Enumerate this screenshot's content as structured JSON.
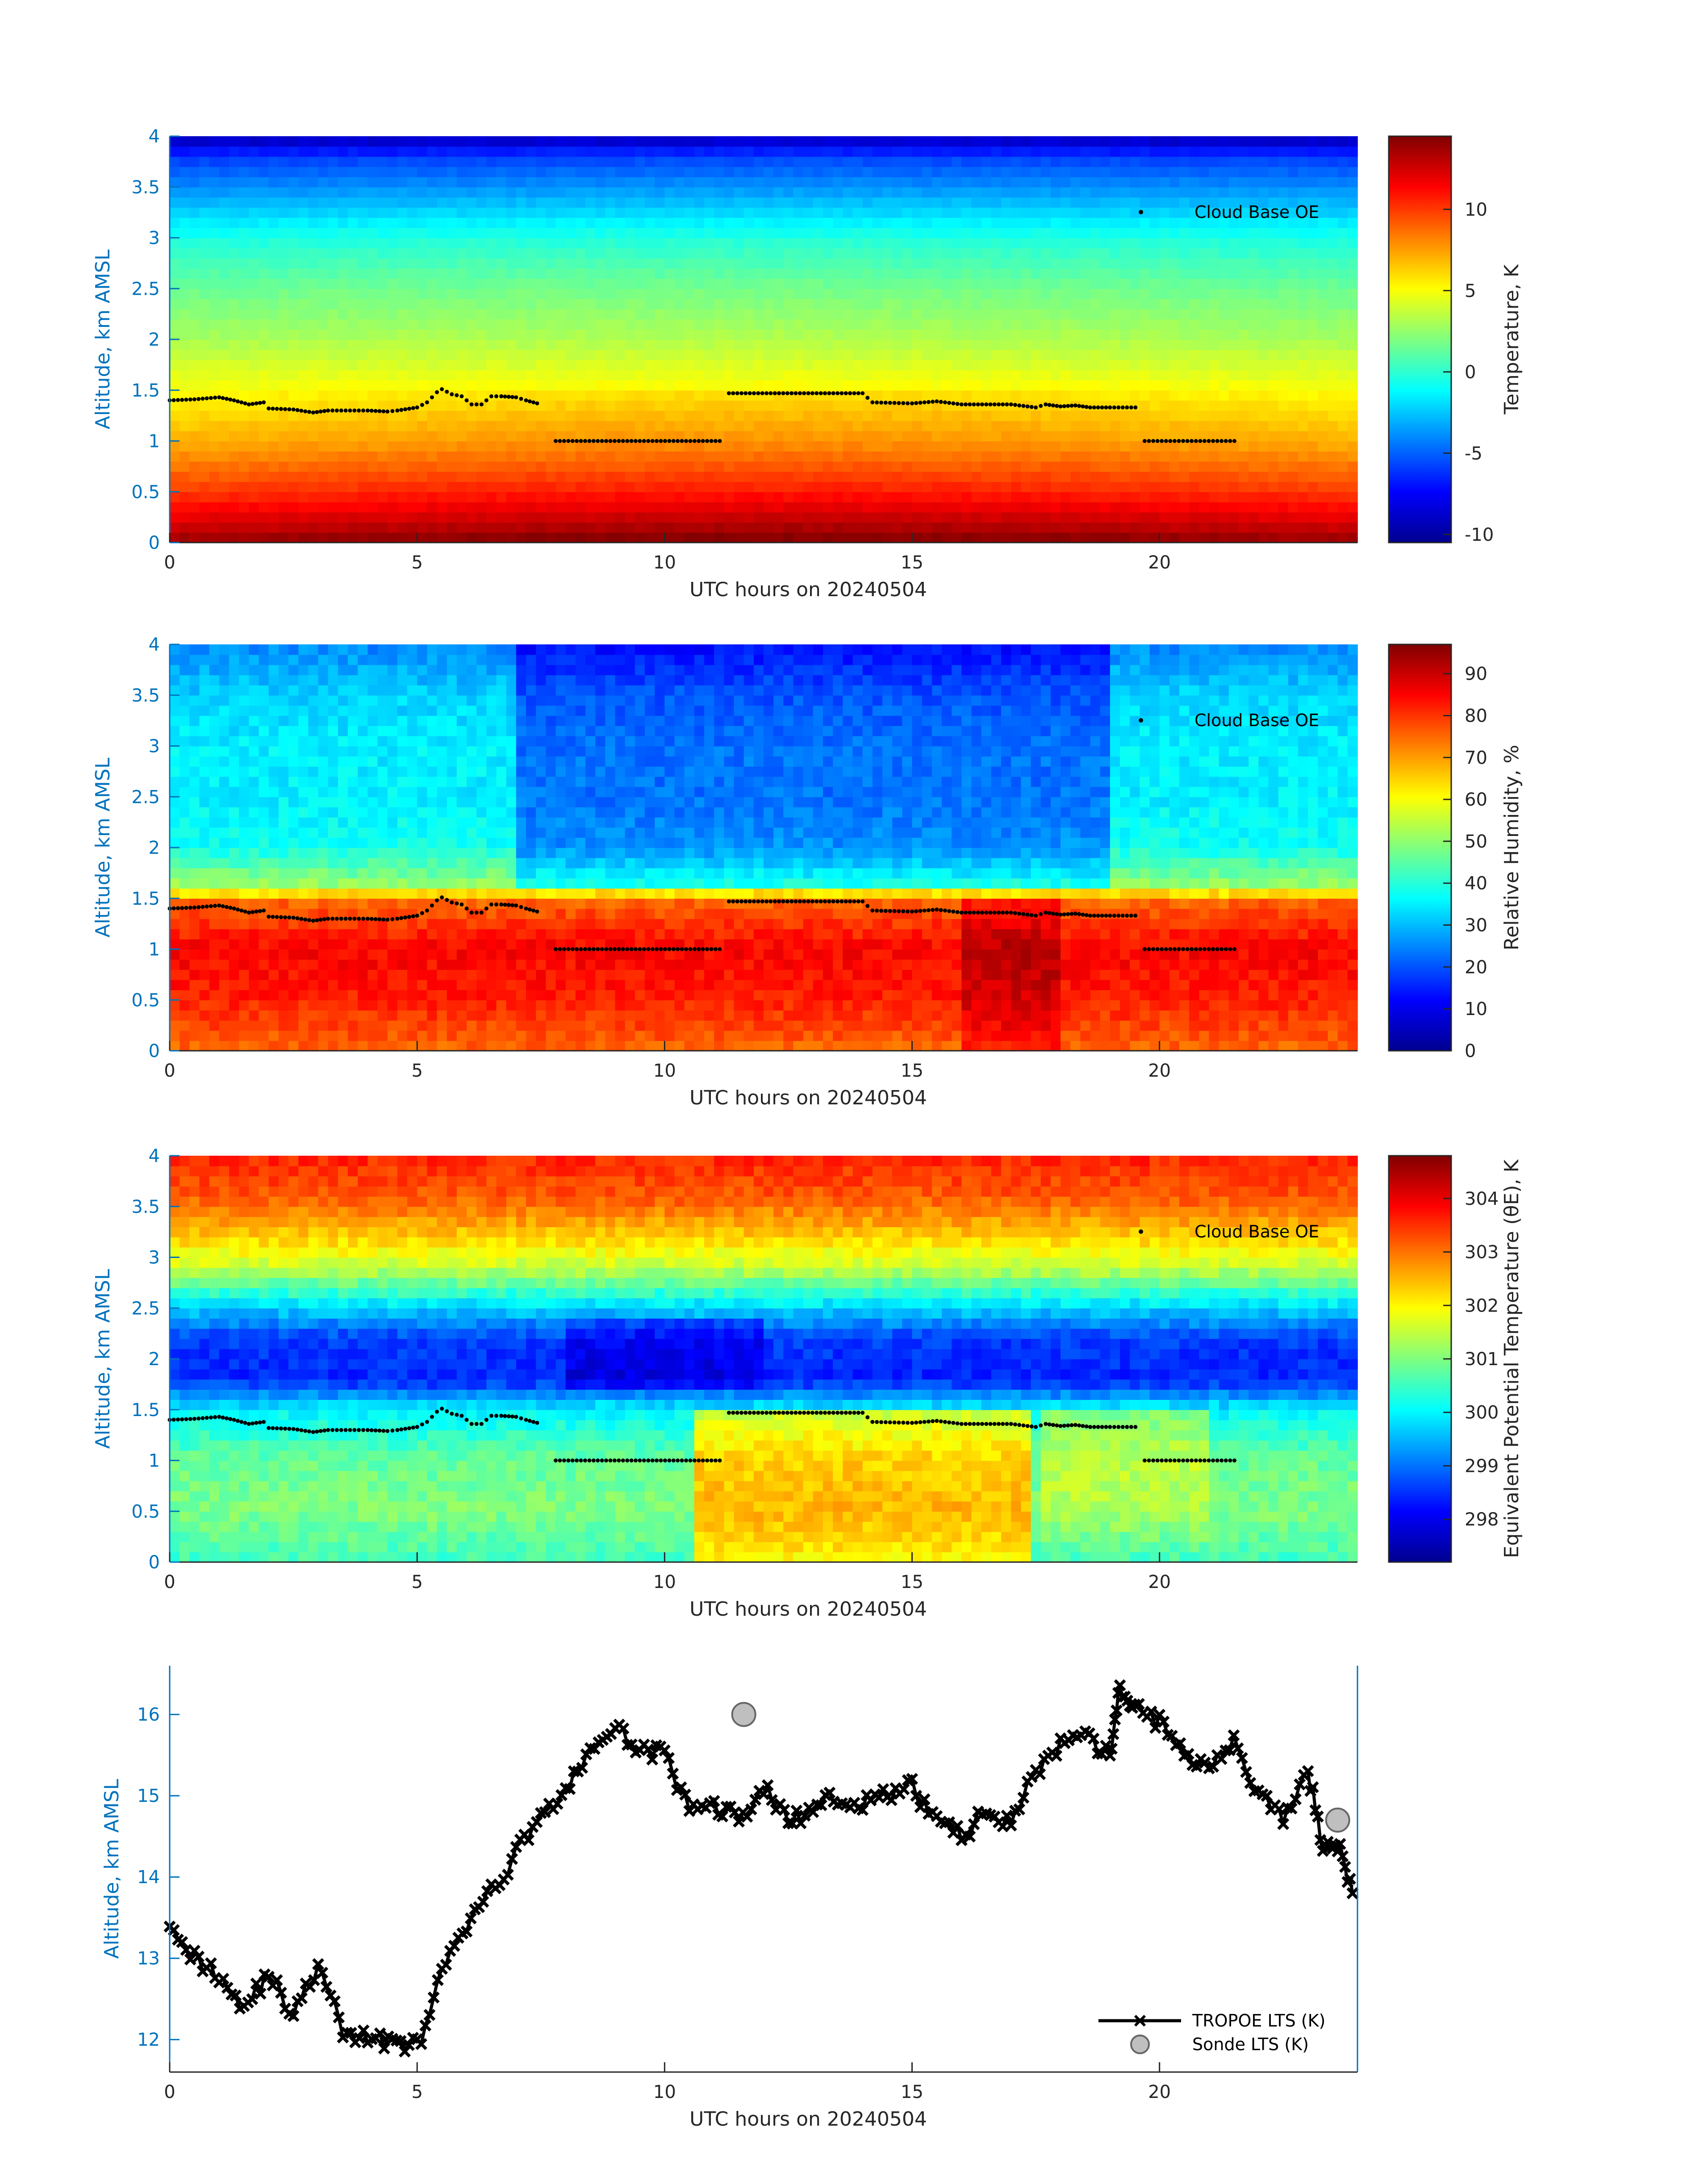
{
  "colors": {
    "axis_blue": "#0072bd",
    "text": "#262626",
    "series_black": "#000000",
    "sonde_fill": "#bfbfbf",
    "sonde_edge": "#666666"
  },
  "chart_data": [
    {
      "type": "heatmap",
      "xlabel": "UTC hours on 20240504",
      "ylabel": "Altitude, km AMSL",
      "xlim": [
        0,
        24
      ],
      "ylim": [
        0,
        4
      ],
      "x_ticks": [
        "0",
        "5",
        "10",
        "15",
        "20"
      ],
      "y_ticks": [
        "0",
        "0.5",
        "1",
        "1.5",
        "2",
        "2.5",
        "3",
        "3.5",
        "4"
      ],
      "colorbar_label": "Temperature, K",
      "colorbar_range": [
        -10.5,
        14.5
      ],
      "colorbar_ticks": [
        "-10",
        "-5",
        "0",
        "5",
        "10"
      ],
      "field_profile": [
        [
          0,
          14.0
        ],
        [
          0.1,
          13.0
        ],
        [
          0.5,
          10.0
        ],
        [
          1.0,
          7.0
        ],
        [
          1.5,
          5.0
        ],
        [
          2.0,
          3.0
        ],
        [
          2.5,
          1.5
        ],
        [
          3.0,
          -0.5
        ],
        [
          3.5,
          -4.0
        ],
        [
          3.8,
          -6.0
        ],
        [
          4.0,
          -9.5
        ]
      ],
      "legend": "Cloud Base OE",
      "legend_position": "top-right"
    },
    {
      "type": "heatmap",
      "xlabel": "UTC hours on 20240504",
      "ylabel": "Altitude, km AMSL",
      "xlim": [
        0,
        24
      ],
      "ylim": [
        0,
        4
      ],
      "x_ticks": [
        "0",
        "5",
        "10",
        "15",
        "20"
      ],
      "y_ticks": [
        "0",
        "0.5",
        "1",
        "1.5",
        "2",
        "2.5",
        "3",
        "3.5",
        "4"
      ],
      "colorbar_label": "Relative Humidity, %",
      "colorbar_range": [
        0,
        97
      ],
      "colorbar_ticks": [
        "0",
        "10",
        "20",
        "30",
        "40",
        "50",
        "60",
        "70",
        "80",
        "90"
      ],
      "field_profile": [
        [
          0,
          75
        ],
        [
          0.5,
          82
        ],
        [
          1.0,
          85
        ],
        [
          1.5,
          75
        ],
        [
          1.6,
          52
        ],
        [
          2.0,
          38
        ],
        [
          2.5,
          35
        ],
        [
          3.0,
          35
        ],
        [
          3.5,
          32
        ],
        [
          4.0,
          25
        ]
      ],
      "legend": "Cloud Base OE",
      "legend_position": "top-right"
    },
    {
      "type": "heatmap",
      "xlabel": "UTC hours on 20240504",
      "ylabel": "Altitude, km AMSL",
      "xlim": [
        0,
        24
      ],
      "ylim": [
        0,
        4
      ],
      "x_ticks": [
        "0",
        "5",
        "10",
        "15",
        "20"
      ],
      "y_ticks": [
        "0",
        "0.5",
        "1",
        "1.5",
        "2",
        "2.5",
        "3",
        "3.5",
        "4"
      ],
      "colorbar_label": "Equivalent Potential Temperature (θE), K",
      "colorbar_range": [
        297.2,
        304.8
      ],
      "colorbar_ticks": [
        "298",
        "299",
        "300",
        "301",
        "302",
        "303",
        "304"
      ],
      "field_profile": [
        [
          0,
          300.5
        ],
        [
          0.5,
          301.0
        ],
        [
          1.0,
          300.8
        ],
        [
          1.5,
          300.0
        ],
        [
          1.8,
          298.4
        ],
        [
          2.2,
          298.6
        ],
        [
          2.5,
          299.7
        ],
        [
          2.9,
          301.5
        ],
        [
          3.2,
          302.3
        ],
        [
          3.6,
          303.2
        ],
        [
          4.0,
          303.6
        ]
      ],
      "legend": "Cloud Base OE",
      "legend_position": "top-right"
    },
    {
      "type": "line",
      "xlabel": "UTC hours on 20240504",
      "ylabel": "Altitude, km AMSL",
      "xlim": [
        0,
        24
      ],
      "ylim": [
        11.6,
        16.6
      ],
      "x_ticks": [
        "0",
        "5",
        "10",
        "15",
        "20"
      ],
      "y_ticks": [
        "12",
        "13",
        "14",
        "15",
        "16"
      ],
      "legend_position": "bottom-right",
      "series": [
        {
          "name": "TROPOE LTS (K)",
          "x": [
            0,
            0.5,
            1,
            1.5,
            2,
            2.5,
            3,
            3.5,
            4,
            4.5,
            5,
            5.5,
            6,
            6.5,
            7,
            7.5,
            8,
            8.5,
            9,
            9.5,
            10,
            10.5,
            11,
            11.5,
            12,
            12.5,
            13,
            13.5,
            14,
            14.5,
            15,
            15.5,
            16,
            16.5,
            17,
            17.5,
            18,
            18.5,
            19,
            19.2,
            19.5,
            20,
            20.5,
            21,
            21.5,
            22,
            22.5,
            23,
            23.3,
            23.6,
            23.9
          ],
          "y": [
            13.5,
            13.0,
            12.8,
            12.4,
            12.8,
            12.3,
            12.9,
            12.1,
            12.0,
            12.0,
            11.9,
            12.8,
            13.4,
            13.8,
            14.3,
            14.8,
            15.0,
            15.6,
            15.8,
            15.6,
            15.5,
            14.8,
            14.9,
            14.7,
            15.1,
            14.7,
            14.8,
            15.0,
            14.9,
            15.0,
            15.1,
            14.7,
            14.5,
            14.8,
            14.7,
            15.3,
            15.6,
            15.7,
            15.5,
            16.3,
            16.1,
            15.9,
            15.5,
            15.4,
            15.7,
            15.0,
            14.7,
            15.3,
            14.4,
            14.4,
            13.8
          ]
        },
        {
          "name": "Sonde LTS (K)",
          "x": [
            11.6,
            23.6
          ],
          "y": [
            16.0,
            14.7
          ]
        }
      ]
    }
  ],
  "cloud_base": {
    "x": [
      0,
      0.5,
      1.0,
      1.3,
      1.6,
      1.9,
      2.0,
      2.5,
      2.9,
      3.2,
      4.0,
      4.4,
      4.6,
      5.0,
      5.2,
      5.4,
      5.5,
      5.7,
      5.9,
      6.1,
      6.3,
      6.5,
      6.7,
      7.0,
      7.2,
      7.5,
      7.8,
      11.2,
      11.3,
      14.0,
      14.2,
      15.0,
      15.5,
      16.0,
      17.0,
      17.5,
      17.7,
      18.0,
      18.3,
      18.6,
      19.0,
      19.6,
      19.7,
      21.6
    ],
    "y": [
      1.4,
      1.41,
      1.43,
      1.4,
      1.36,
      1.38,
      1.32,
      1.31,
      1.28,
      1.3,
      1.3,
      1.29,
      1.3,
      1.33,
      1.38,
      1.48,
      1.51,
      1.46,
      1.44,
      1.36,
      1.36,
      1.44,
      1.44,
      1.43,
      1.4,
      1.36,
      1.0,
      1.0,
      1.47,
      1.47,
      1.38,
      1.37,
      1.39,
      1.36,
      1.36,
      1.33,
      1.36,
      1.34,
      1.35,
      1.33,
      1.33,
      1.33,
      1.0,
      1.0
    ]
  }
}
